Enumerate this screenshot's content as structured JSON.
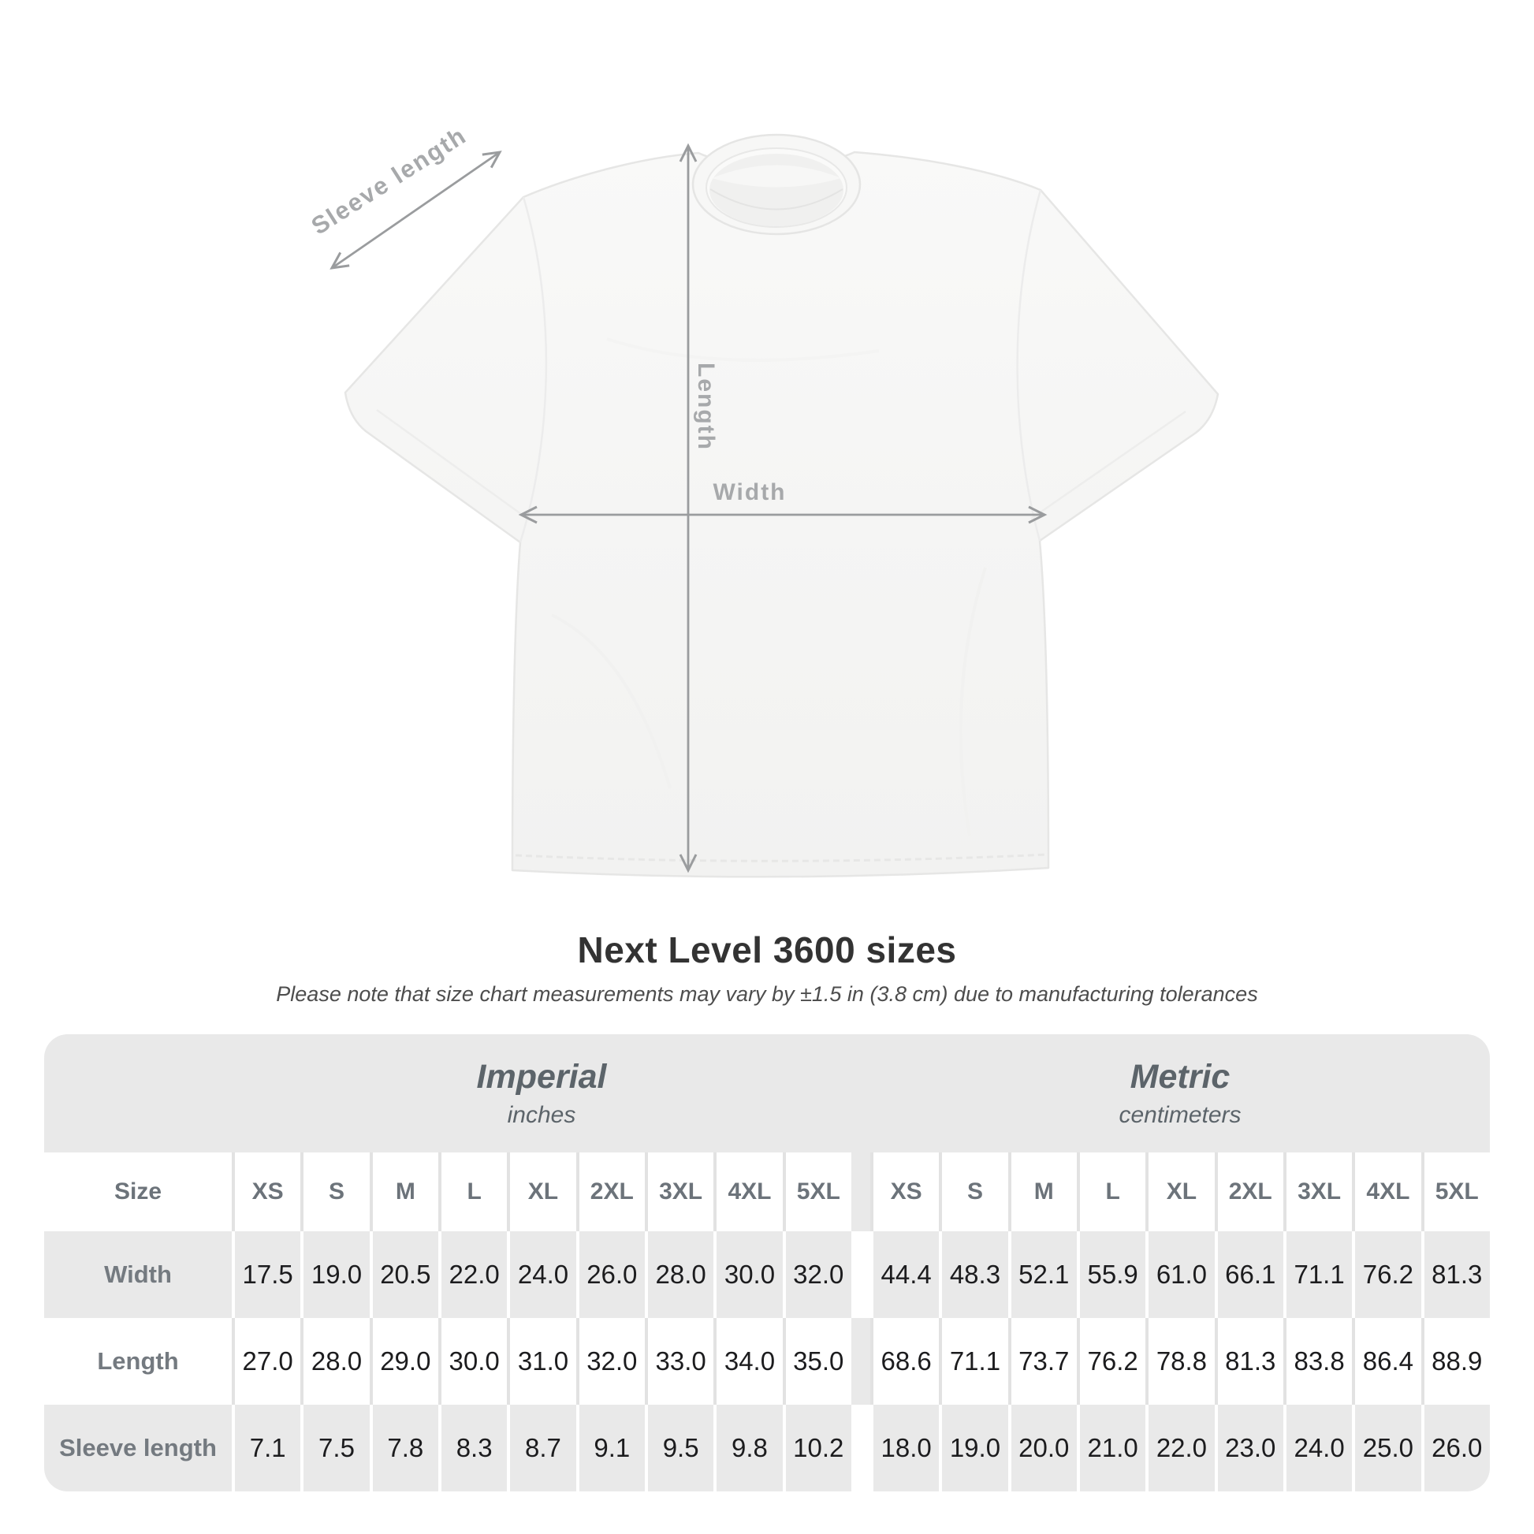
{
  "title": "Next Level 3600 sizes",
  "subtitle": "Please note that size chart measurements may vary by ±1.5 in (3.8 cm) due to manufacturing tolerances",
  "diagram": {
    "sleeve_length_label": "Sleeve length",
    "length_label": "Length",
    "width_label": "Width"
  },
  "table": {
    "unit_groups": [
      {
        "name": "Imperial",
        "unit": "inches"
      },
      {
        "name": "Metric",
        "unit": "centimeters"
      }
    ],
    "size_header": "Size",
    "sizes": [
      "XS",
      "S",
      "M",
      "L",
      "XL",
      "2XL",
      "3XL",
      "4XL",
      "5XL"
    ],
    "rows": [
      {
        "label": "Width",
        "imperial": [
          "17.5",
          "19.0",
          "20.5",
          "22.0",
          "24.0",
          "26.0",
          "28.0",
          "30.0",
          "32.0"
        ],
        "metric": [
          "44.4",
          "48.3",
          "52.1",
          "55.9",
          "61.0",
          "66.1",
          "71.1",
          "76.2",
          "81.3"
        ]
      },
      {
        "label": "Length",
        "imperial": [
          "27.0",
          "28.0",
          "29.0",
          "30.0",
          "31.0",
          "32.0",
          "33.0",
          "34.0",
          "35.0"
        ],
        "metric": [
          "68.6",
          "71.1",
          "73.7",
          "76.2",
          "78.8",
          "81.3",
          "83.8",
          "86.4",
          "88.9"
        ]
      },
      {
        "label": "Sleeve length",
        "imperial": [
          "7.1",
          "7.5",
          "7.8",
          "8.3",
          "8.7",
          "9.1",
          "9.5",
          "9.8",
          "10.2"
        ],
        "metric": [
          "18.0",
          "19.0",
          "20.0",
          "21.0",
          "22.0",
          "23.0",
          "24.0",
          "25.0",
          "26.0"
        ]
      }
    ]
  },
  "colors": {
    "panel_gray": "#e9e9e9",
    "row_separator_on_gray": "#ffffff",
    "row_separator_on_white": "#e2e2e2",
    "value_text": "#1c1c1e",
    "header_text": "#6c737a",
    "row_label_text": "#747a80",
    "unit_header_text": "#5c646a",
    "title_text": "#333333",
    "subtitle_text": "#4d4d4d",
    "measurement_gray": "#9a9c9e",
    "measurement_label_gray": "#a7a9ab"
  }
}
